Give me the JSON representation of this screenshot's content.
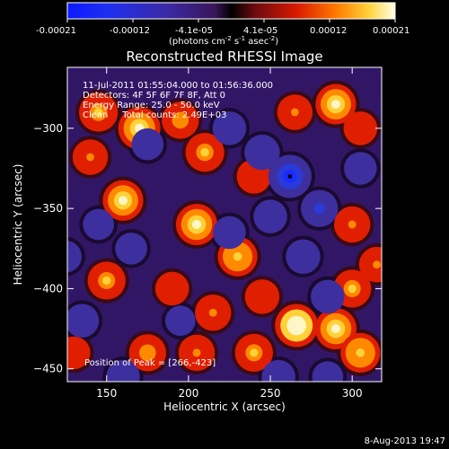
{
  "colorbar": {
    "ticks": [
      "-0.00021",
      "-0.00012",
      "-4.1e-05",
      "4.1e-05",
      "0.00012",
      "0.00021"
    ],
    "unit": "(photons cm",
    "unit_sup1": "-2",
    "unit_mid": " s",
    "unit_sup2": "-1",
    "unit_end": " asec",
    "unit_sup3": "-2",
    "unit_close": ")"
  },
  "chart_data": {
    "type": "heatmap",
    "title": "Reconstructed RHESSI Image",
    "xlabel": "Heliocentric X (arcsec)",
    "ylabel": "Heliocentric Y (arcsec)",
    "xlim": [
      126,
      318
    ],
    "ylim": [
      -458,
      -262
    ],
    "xticks": [
      150,
      200,
      250,
      300
    ],
    "yticks": [
      -300,
      -350,
      -400,
      -450
    ],
    "xtick_labels": [
      "150",
      "200",
      "250",
      "300"
    ],
    "ytick_labels": [
      "−300",
      "−350",
      "−400",
      "−450"
    ],
    "color_range": [
      -0.00021,
      0.00021
    ],
    "peak": [
      266,
      -423
    ],
    "blobs": [
      {
        "x": 145,
        "y": -290,
        "v": 0.00016
      },
      {
        "x": 140,
        "y": -318,
        "v": 0.00012
      },
      {
        "x": 170,
        "y": -300,
        "v": 0.0002
      },
      {
        "x": 195,
        "y": -295,
        "v": 0.00014
      },
      {
        "x": 160,
        "y": -345,
        "v": 0.00018
      },
      {
        "x": 210,
        "y": -315,
        "v": 0.00016
      },
      {
        "x": 205,
        "y": -360,
        "v": 0.00019
      },
      {
        "x": 240,
        "y": -330,
        "v": 0.00011
      },
      {
        "x": 265,
        "y": -290,
        "v": 0.00012
      },
      {
        "x": 290,
        "y": -285,
        "v": 0.00018
      },
      {
        "x": 305,
        "y": -300,
        "v": 0.0001
      },
      {
        "x": 300,
        "y": -360,
        "v": 0.00013
      },
      {
        "x": 150,
        "y": -395,
        "v": 0.00015
      },
      {
        "x": 190,
        "y": -400,
        "v": 0.0001
      },
      {
        "x": 215,
        "y": -415,
        "v": 0.00013
      },
      {
        "x": 230,
        "y": -380,
        "v": 0.00017
      },
      {
        "x": 245,
        "y": -405,
        "v": 0.00011
      },
      {
        "x": 300,
        "y": -400,
        "v": 0.00015
      },
      {
        "x": 315,
        "y": -385,
        "v": 0.00012
      },
      {
        "x": 266,
        "y": -423,
        "v": 0.00021
      },
      {
        "x": 290,
        "y": -425,
        "v": 0.00019
      },
      {
        "x": 305,
        "y": -440,
        "v": 0.00017
      },
      {
        "x": 175,
        "y": -440,
        "v": 0.00014
      },
      {
        "x": 205,
        "y": -440,
        "v": 0.00013
      },
      {
        "x": 240,
        "y": -440,
        "v": 0.00015
      },
      {
        "x": 130,
        "y": -440,
        "v": 9e-05
      },
      {
        "x": 175,
        "y": -310,
        "v": -8e-05
      },
      {
        "x": 225,
        "y": -300,
        "v": -0.0001
      },
      {
        "x": 245,
        "y": -315,
        "v": -0.00012
      },
      {
        "x": 262,
        "y": -330,
        "v": -0.00021
      },
      {
        "x": 280,
        "y": -350,
        "v": -0.00014
      },
      {
        "x": 250,
        "y": -355,
        "v": -0.0001
      },
      {
        "x": 165,
        "y": -375,
        "v": -8e-05
      },
      {
        "x": 225,
        "y": -365,
        "v": -9e-05
      },
      {
        "x": 270,
        "y": -380,
        "v": -0.00011
      },
      {
        "x": 285,
        "y": -405,
        "v": -0.0001
      },
      {
        "x": 145,
        "y": -360,
        "v": -7e-05
      },
      {
        "x": 135,
        "y": -420,
        "v": -0.0001
      },
      {
        "x": 195,
        "y": -420,
        "v": -6e-05
      },
      {
        "x": 305,
        "y": -325,
        "v": -9e-05
      },
      {
        "x": 160,
        "y": -455,
        "v": -0.0001
      },
      {
        "x": 255,
        "y": -455,
        "v": -0.0001
      },
      {
        "x": 285,
        "y": -455,
        "v": -7e-05
      },
      {
        "x": 125,
        "y": -380,
        "v": -8e-05
      }
    ]
  },
  "info": {
    "line1": "11-Jul-2011 01:55:04.000 to 01:56:36.000",
    "line2": "Detectors: 4F 5F 6F 7F 8F, Att 0",
    "line3": "Energy Range: 25.0 - 50.0 keV",
    "line4": "Clean     Total counts: 2.49E+03",
    "peak_text": "Position of Peak = [266,-423]"
  },
  "timestamp": "8-Aug-2013 19:47"
}
